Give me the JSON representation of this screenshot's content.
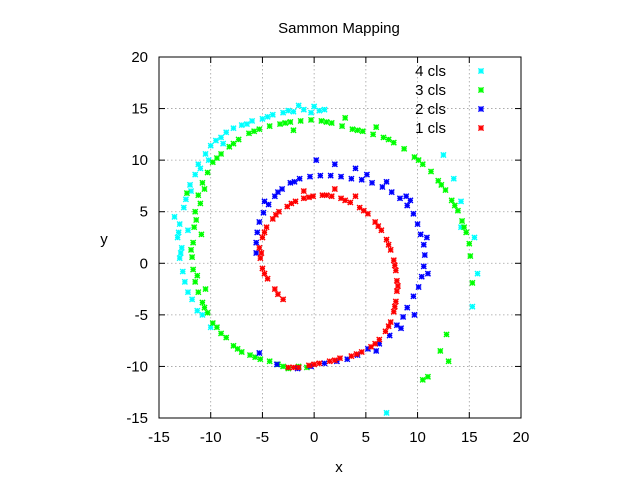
{
  "chart_data": {
    "type": "scatter",
    "title": "Sammon Mapping",
    "xlabel": "x",
    "ylabel": "y",
    "xlim": [
      -15,
      20
    ],
    "ylim": [
      -15,
      20
    ],
    "xticks": [
      -15,
      -10,
      -5,
      0,
      5,
      10,
      15,
      20
    ],
    "yticks": [
      -15,
      -10,
      -5,
      0,
      5,
      10,
      15,
      20
    ],
    "grid": true,
    "legend_position": "top-right",
    "series": [
      {
        "name": "4 cls",
        "color": "#00ffff",
        "points": [
          [
            -13.5,
            4.5
          ],
          [
            -13.0,
            3.8
          ],
          [
            -13.2,
            2.5
          ],
          [
            -12.8,
            1.5
          ],
          [
            -13.0,
            0.5
          ],
          [
            -12.7,
            -0.8
          ],
          [
            -12.5,
            -1.8
          ],
          [
            -12.2,
            -2.8
          ],
          [
            -11.8,
            -3.5
          ],
          [
            -11.3,
            -4.6
          ],
          [
            -10.8,
            -5.0
          ],
          [
            -10.0,
            -6.2
          ],
          [
            -13.1,
            3.0
          ],
          [
            -12.9,
            1.0
          ],
          [
            -12.4,
            6.2
          ],
          [
            -12.0,
            7.6
          ],
          [
            -11.5,
            8.6
          ],
          [
            -11.2,
            9.6
          ],
          [
            -10.5,
            10.6
          ],
          [
            -10.0,
            11.4
          ],
          [
            -9.5,
            11.9
          ],
          [
            -9.0,
            12.2
          ],
          [
            -8.5,
            12.7
          ],
          [
            -7.8,
            13.1
          ],
          [
            -7.0,
            13.4
          ],
          [
            -6.0,
            13.8
          ],
          [
            -5.0,
            14.0
          ],
          [
            -4.0,
            14.4
          ],
          [
            -3.0,
            14.6
          ],
          [
            -2.0,
            14.7
          ],
          [
            -1.0,
            14.9
          ],
          [
            0.0,
            15.2
          ],
          [
            0.5,
            14.8
          ],
          [
            1.0,
            14.9
          ],
          [
            -1.5,
            15.3
          ],
          [
            -0.3,
            14.6
          ],
          [
            -12.6,
            5.4
          ],
          [
            -12.2,
            3.2
          ],
          [
            -11.9,
            7.0
          ],
          [
            -11.0,
            9.2
          ],
          [
            -10.2,
            10.0
          ],
          [
            -8.8,
            11.6
          ],
          [
            -6.5,
            13.5
          ],
          [
            -4.5,
            14.2
          ],
          [
            -2.5,
            14.8
          ],
          [
            14.2,
            6.0
          ],
          [
            15.5,
            2.5
          ],
          [
            15.8,
            -1.0
          ],
          [
            15.3,
            -4.2
          ],
          [
            14.2,
            3.5
          ],
          [
            7.0,
            -14.5
          ],
          [
            12.5,
            10.5
          ],
          [
            13.5,
            8.2
          ]
        ]
      },
      {
        "name": "3 cls",
        "color": "#00ff00",
        "points": [
          [
            -11.2,
            6.6
          ],
          [
            -11.5,
            5.0
          ],
          [
            -11.6,
            3.5
          ],
          [
            -11.7,
            2.0
          ],
          [
            -11.8,
            0.6
          ],
          [
            -11.7,
            -0.6
          ],
          [
            -11.5,
            -1.8
          ],
          [
            -11.2,
            -2.8
          ],
          [
            -10.8,
            -3.8
          ],
          [
            -10.3,
            -4.8
          ],
          [
            -9.8,
            -5.8
          ],
          [
            -9.0,
            -6.8
          ],
          [
            -8.5,
            -7.2
          ],
          [
            -7.8,
            -8.0
          ],
          [
            -7.0,
            -8.6
          ],
          [
            -6.2,
            -8.9
          ],
          [
            -5.2,
            -9.3
          ],
          [
            -4.3,
            -9.5
          ],
          [
            -3.5,
            -9.8
          ],
          [
            -2.5,
            -10.2
          ],
          [
            -1.5,
            -10.0
          ],
          [
            -0.7,
            -10.1
          ],
          [
            -10.8,
            7.8
          ],
          [
            -10.3,
            8.8
          ],
          [
            -9.8,
            9.8
          ],
          [
            -9.0,
            10.6
          ],
          [
            -8.2,
            11.3
          ],
          [
            -7.3,
            12.0
          ],
          [
            -6.3,
            12.6
          ],
          [
            -5.3,
            13.0
          ],
          [
            -4.3,
            13.3
          ],
          [
            -3.3,
            13.5
          ],
          [
            -2.3,
            13.7
          ],
          [
            -1.3,
            13.8
          ],
          [
            -0.3,
            13.9
          ],
          [
            0.7,
            13.8
          ],
          [
            1.7,
            13.6
          ],
          [
            2.7,
            13.3
          ],
          [
            3.7,
            13.0
          ],
          [
            4.7,
            12.8
          ],
          [
            5.7,
            12.5
          ],
          [
            6.7,
            12.2
          ],
          [
            7.7,
            11.7
          ],
          [
            8.7,
            11.1
          ],
          [
            9.7,
            10.3
          ],
          [
            10.5,
            9.6
          ],
          [
            11.3,
            8.9
          ],
          [
            12.0,
            8.0
          ],
          [
            12.7,
            7.1
          ],
          [
            13.3,
            6.1
          ],
          [
            13.9,
            5.1
          ],
          [
            14.3,
            4.1
          ],
          [
            14.7,
            3.0
          ],
          [
            15.0,
            1.9
          ],
          [
            15.1,
            0.7
          ],
          [
            12.2,
            -8.5
          ],
          [
            12.8,
            -6.9
          ],
          [
            11.0,
            -11.0
          ],
          [
            10.5,
            -11.3
          ],
          [
            13.0,
            -9.5
          ],
          [
            -11.4,
            4.2
          ],
          [
            -11.9,
            1.3
          ],
          [
            -11.3,
            -1.2
          ],
          [
            -10.6,
            -4.3
          ],
          [
            -9.4,
            -6.2
          ],
          [
            -7.4,
            -8.3
          ],
          [
            -5.7,
            -9.1
          ],
          [
            -3.0,
            -10.0
          ],
          [
            -10.6,
            7.2
          ],
          [
            -9.4,
            10.2
          ],
          [
            -7.8,
            11.6
          ],
          [
            -5.8,
            12.8
          ],
          [
            -2.8,
            13.6
          ],
          [
            1.2,
            13.7
          ],
          [
            4.2,
            12.9
          ],
          [
            7.2,
            12.0
          ],
          [
            10.1,
            10.0
          ],
          [
            12.3,
            7.6
          ],
          [
            13.6,
            5.6
          ],
          [
            14.5,
            3.5
          ],
          [
            -12.3,
            6.8
          ],
          [
            -11.0,
            5.8
          ],
          [
            -10.9,
            2.8
          ],
          [
            -10.5,
            -2.5
          ],
          [
            15.3,
            -1.9
          ],
          [
            -2.0,
            12.9
          ],
          [
            3.0,
            14.1
          ],
          [
            6.0,
            13.2
          ]
        ]
      },
      {
        "name": "2 cls",
        "color": "#0000ff",
        "points": [
          [
            -5.3,
            -8.7
          ],
          [
            -3.6,
            -9.8
          ],
          [
            -1.6,
            -10.2
          ],
          [
            -0.3,
            -10.0
          ],
          [
            1.0,
            -9.7
          ],
          [
            2.2,
            -9.5
          ],
          [
            3.2,
            -9.3
          ],
          [
            4.2,
            -8.9
          ],
          [
            5.2,
            -8.3
          ],
          [
            6.3,
            -7.8
          ],
          [
            7.3,
            -7.0
          ],
          [
            8.0,
            -6.0
          ],
          [
            8.6,
            -5.2
          ],
          [
            9.0,
            -4.3
          ],
          [
            9.6,
            -3.2
          ],
          [
            10.1,
            -2.3
          ],
          [
            10.4,
            -1.3
          ],
          [
            10.6,
            -0.3
          ],
          [
            10.7,
            0.8
          ],
          [
            10.6,
            1.8
          ],
          [
            10.3,
            2.8
          ],
          [
            10.0,
            3.8
          ],
          [
            9.6,
            4.8
          ],
          [
            9.0,
            5.6
          ],
          [
            8.3,
            6.3
          ],
          [
            7.5,
            6.9
          ],
          [
            6.6,
            7.4
          ],
          [
            5.6,
            7.8
          ],
          [
            4.6,
            8.1
          ],
          [
            3.6,
            8.2
          ],
          [
            2.6,
            8.4
          ],
          [
            1.6,
            8.5
          ],
          [
            0.6,
            8.5
          ],
          [
            -0.4,
            8.4
          ],
          [
            -1.4,
            8.2
          ],
          [
            -2.3,
            7.8
          ],
          [
            -3.1,
            7.2
          ],
          [
            -3.8,
            6.5
          ],
          [
            -4.4,
            5.7
          ],
          [
            -4.9,
            4.9
          ],
          [
            -5.3,
            4.0
          ],
          [
            -5.5,
            3.0
          ],
          [
            -5.6,
            2.0
          ],
          [
            -5.6,
            1.0
          ],
          [
            0.2,
            10.0
          ],
          [
            2.0,
            9.6
          ],
          [
            4.0,
            9.2
          ],
          [
            7.0,
            7.9
          ],
          [
            9.3,
            6.1
          ],
          [
            10.9,
            2.5
          ],
          [
            11.0,
            -1.0
          ],
          [
            9.7,
            -5.0
          ],
          [
            8.4,
            -6.3
          ],
          [
            6.0,
            -8.5
          ],
          [
            -4.8,
            6.0
          ],
          [
            -3.5,
            6.9
          ],
          [
            -1.9,
            7.9
          ],
          [
            5.1,
            8.6
          ],
          [
            8.9,
            6.5
          ]
        ]
      },
      {
        "name": "1 cls",
        "color": "#ff0000",
        "points": [
          [
            -3.0,
            -3.5
          ],
          [
            -3.8,
            -2.5
          ],
          [
            -4.5,
            -1.5
          ],
          [
            -5.0,
            -0.5
          ],
          [
            -5.2,
            0.5
          ],
          [
            -5.3,
            1.5
          ],
          [
            -5.0,
            2.5
          ],
          [
            -4.6,
            3.5
          ],
          [
            -4.0,
            4.3
          ],
          [
            -3.4,
            5.0
          ],
          [
            -2.6,
            5.5
          ],
          [
            -1.8,
            6.0
          ],
          [
            -1.0,
            6.3
          ],
          [
            -0.1,
            6.5
          ],
          [
            0.8,
            6.6
          ],
          [
            1.7,
            6.5
          ],
          [
            2.6,
            6.3
          ],
          [
            3.5,
            5.9
          ],
          [
            4.4,
            5.4
          ],
          [
            5.2,
            4.8
          ],
          [
            5.9,
            4.0
          ],
          [
            6.5,
            3.2
          ],
          [
            7.0,
            2.3
          ],
          [
            7.4,
            1.3
          ],
          [
            7.7,
            0.3
          ],
          [
            7.9,
            -0.7
          ],
          [
            8.0,
            -1.7
          ],
          [
            8.0,
            -2.7
          ],
          [
            7.9,
            -3.7
          ],
          [
            7.7,
            -4.7
          ],
          [
            7.4,
            -5.7
          ],
          [
            6.9,
            -6.6
          ],
          [
            6.3,
            -7.4
          ],
          [
            5.5,
            -8.1
          ],
          [
            4.6,
            -8.6
          ],
          [
            3.6,
            -9.0
          ],
          [
            2.5,
            -9.2
          ],
          [
            1.5,
            -9.5
          ],
          [
            0.5,
            -9.7
          ],
          [
            -0.5,
            -9.9
          ],
          [
            -1.5,
            -10.1
          ],
          [
            -2.5,
            -10.1
          ],
          [
            -3.5,
            -3.0
          ],
          [
            -4.8,
            -1.0
          ],
          [
            -5.1,
            1.0
          ],
          [
            -4.8,
            3.0
          ],
          [
            -3.7,
            4.7
          ],
          [
            -2.2,
            5.8
          ],
          [
            -0.5,
            6.4
          ],
          [
            1.2,
            6.6
          ],
          [
            3.0,
            6.1
          ],
          [
            4.8,
            5.1
          ],
          [
            6.2,
            3.6
          ],
          [
            7.2,
            1.8
          ],
          [
            7.8,
            -0.2
          ],
          [
            8.1,
            -2.2
          ],
          [
            7.8,
            -4.2
          ],
          [
            7.2,
            -6.1
          ],
          [
            5.9,
            -7.8
          ],
          [
            4.1,
            -8.8
          ],
          [
            2.0,
            -9.4
          ],
          [
            0.0,
            -9.8
          ],
          [
            -2.0,
            -10.1
          ],
          [
            -1.0,
            7.0
          ],
          [
            2.0,
            7.2
          ],
          [
            4.0,
            6.5
          ]
        ]
      }
    ]
  }
}
